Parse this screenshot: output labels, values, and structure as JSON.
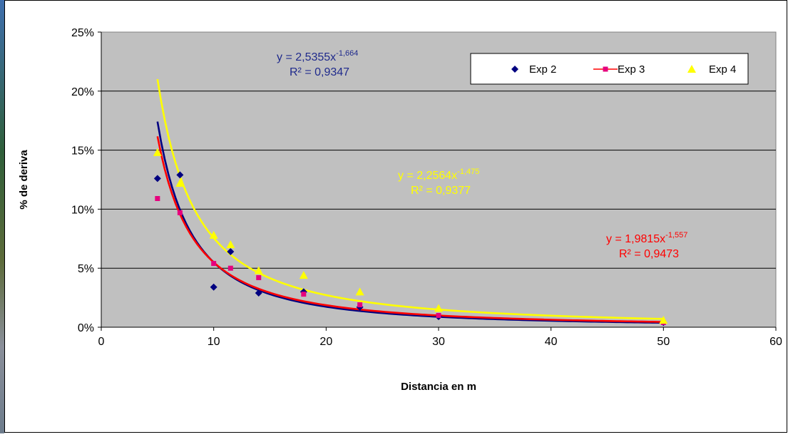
{
  "chart_data": {
    "type": "scatter",
    "title": "",
    "xlabel": "Distancia en m",
    "ylabel": "% de deriva",
    "xlim": [
      0,
      60
    ],
    "ylim": [
      0,
      0.25
    ],
    "x_ticks": [
      "0",
      "10",
      "20",
      "30",
      "40",
      "50",
      "60"
    ],
    "y_ticks": [
      "0%",
      "5%",
      "10%",
      "15%",
      "20%",
      "25%"
    ],
    "grid": "horizontal",
    "plot_background": "#c0c0c0",
    "legend_position": "top-right",
    "series": [
      {
        "name": "Exp 2",
        "color": "#000080",
        "marker": "diamond",
        "x": [
          5,
          7,
          10,
          11.5,
          14,
          18,
          23,
          30,
          50
        ],
        "y": [
          0.126,
          0.129,
          0.034,
          0.064,
          0.029,
          0.03,
          0.017,
          0.009,
          0.004
        ],
        "trendline": {
          "type": "power",
          "a": 2.5355,
          "b": -1.664,
          "x_range": [
            5,
            50
          ],
          "equation": "y = 2,5355x",
          "exponent": "-1,664",
          "r2": "R² = 0,9347"
        }
      },
      {
        "name": "Exp 3",
        "color": "#ff0000",
        "marker_color": "#e6007e",
        "marker": "square",
        "x": [
          5,
          7,
          10,
          11.5,
          14,
          18,
          23,
          30,
          50
        ],
        "y": [
          0.109,
          0.097,
          0.054,
          0.05,
          0.042,
          0.028,
          0.019,
          0.01,
          0.004
        ],
        "trendline": {
          "type": "power",
          "a": 1.9815,
          "b": -1.557,
          "x_range": [
            5,
            50
          ],
          "equation": "y = 1,9815x",
          "exponent": "-1,557",
          "r2": "R² = 0,9473"
        }
      },
      {
        "name": "Exp 4",
        "color": "#ffff00",
        "marker": "triangle",
        "x": [
          5,
          7,
          10,
          11.5,
          14,
          18,
          23,
          30,
          50
        ],
        "y": [
          0.148,
          0.122,
          0.078,
          0.07,
          0.048,
          0.044,
          0.03,
          0.016,
          0.006
        ],
        "trendline": {
          "type": "power",
          "a": 2.2564,
          "b": -1.475,
          "x_range": [
            5,
            50
          ],
          "equation": "y = 2,2564x",
          "exponent": "-1,475",
          "r2": "R² = 0,9377"
        }
      }
    ]
  }
}
